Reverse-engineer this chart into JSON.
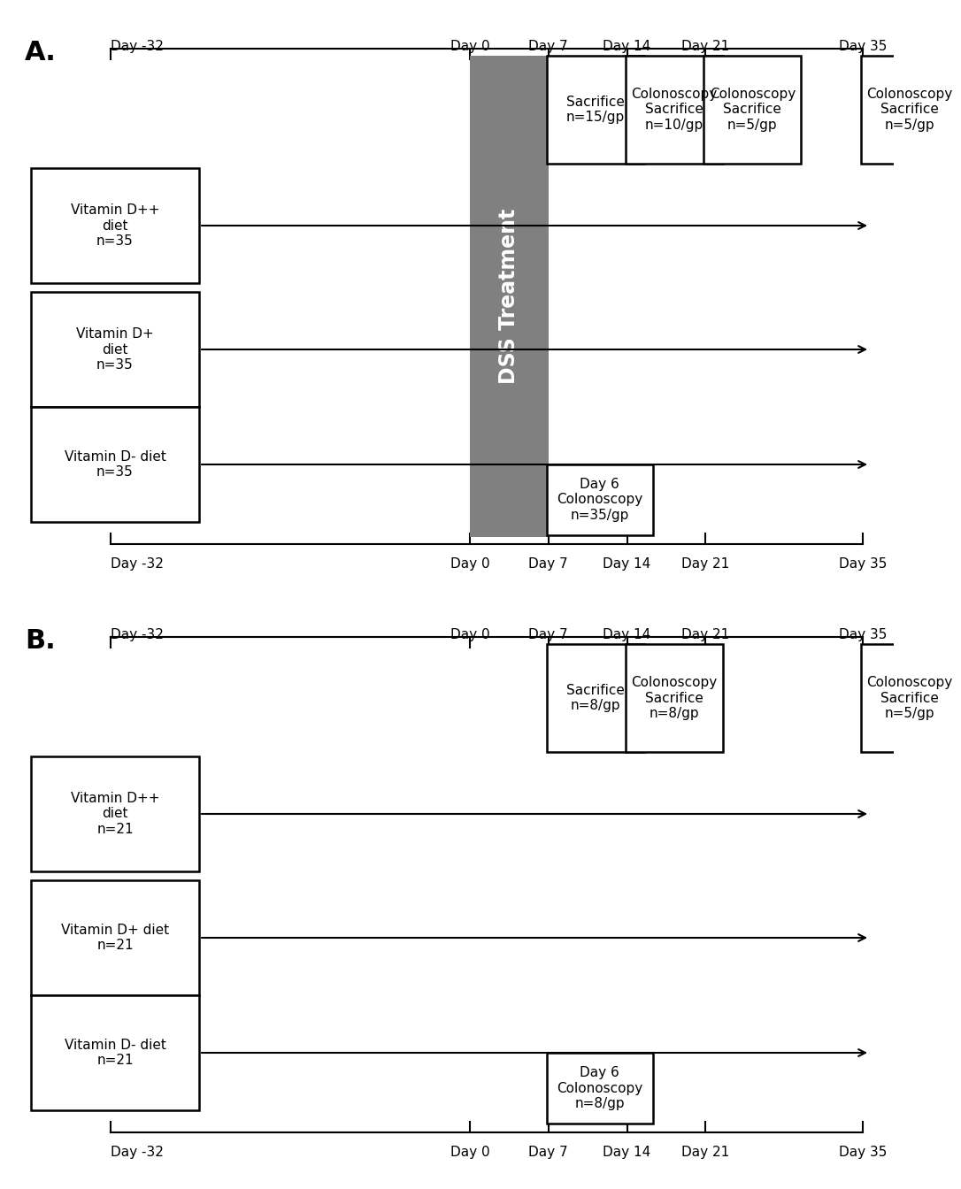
{
  "fig_width": 10.0,
  "fig_height": 13.24,
  "bg_color": "#ffffff",
  "panels": [
    {
      "label": "A.",
      "n_groups": 35,
      "groups": [
        {
          "label": "Vitamin D++\ndiet\nn=35"
        },
        {
          "label": "Vitamin D+\ndiet\nn=35"
        },
        {
          "label": "Vitamin D- diet\nn=35"
        }
      ],
      "has_dss": true,
      "dss_label": "DSS Treatment",
      "dss_color": "#808080",
      "event_boxes": [
        {
          "day": 7,
          "label": "Sacrifice\nn=15/gp"
        },
        {
          "day": 14,
          "label": "Colonoscopy\nSacrifice\nn=10/gp"
        },
        {
          "day": 21,
          "label": "Colonoscopy\nSacrifice\nn=5/gp"
        },
        {
          "day": 35,
          "label": "Colonoscopy\nSacrifice\nn=5/gp"
        }
      ],
      "day6_box": {
        "label": "Day 6\nColonoscopy\nn=35/gp"
      }
    },
    {
      "label": "B.",
      "n_groups": 21,
      "groups": [
        {
          "label": "Vitamin D++\ndiet\nn=21"
        },
        {
          "label": "Vitamin D+ diet\nn=21"
        },
        {
          "label": "Vitamin D- diet\nn=21"
        }
      ],
      "has_dss": false,
      "dss_label": "",
      "dss_color": "#808080",
      "event_boxes": [
        {
          "day": 7,
          "label": "Sacrifice\nn=8/gp"
        },
        {
          "day": 14,
          "label": "Colonoscopy\nSacrifice\nn=8/gp"
        },
        {
          "day": 35,
          "label": "Colonoscopy\nSacrifice\nn=5/gp"
        }
      ],
      "day6_box": {
        "label": "Day 6\nColonoscopy\nn=8/gp"
      }
    }
  ],
  "timeline_days": [
    -32,
    0,
    7,
    14,
    21,
    35
  ],
  "timeline_labels": [
    "Day -32",
    "Day 0",
    "Day 7",
    "Day 14",
    "Day 21",
    "Day 35"
  ]
}
